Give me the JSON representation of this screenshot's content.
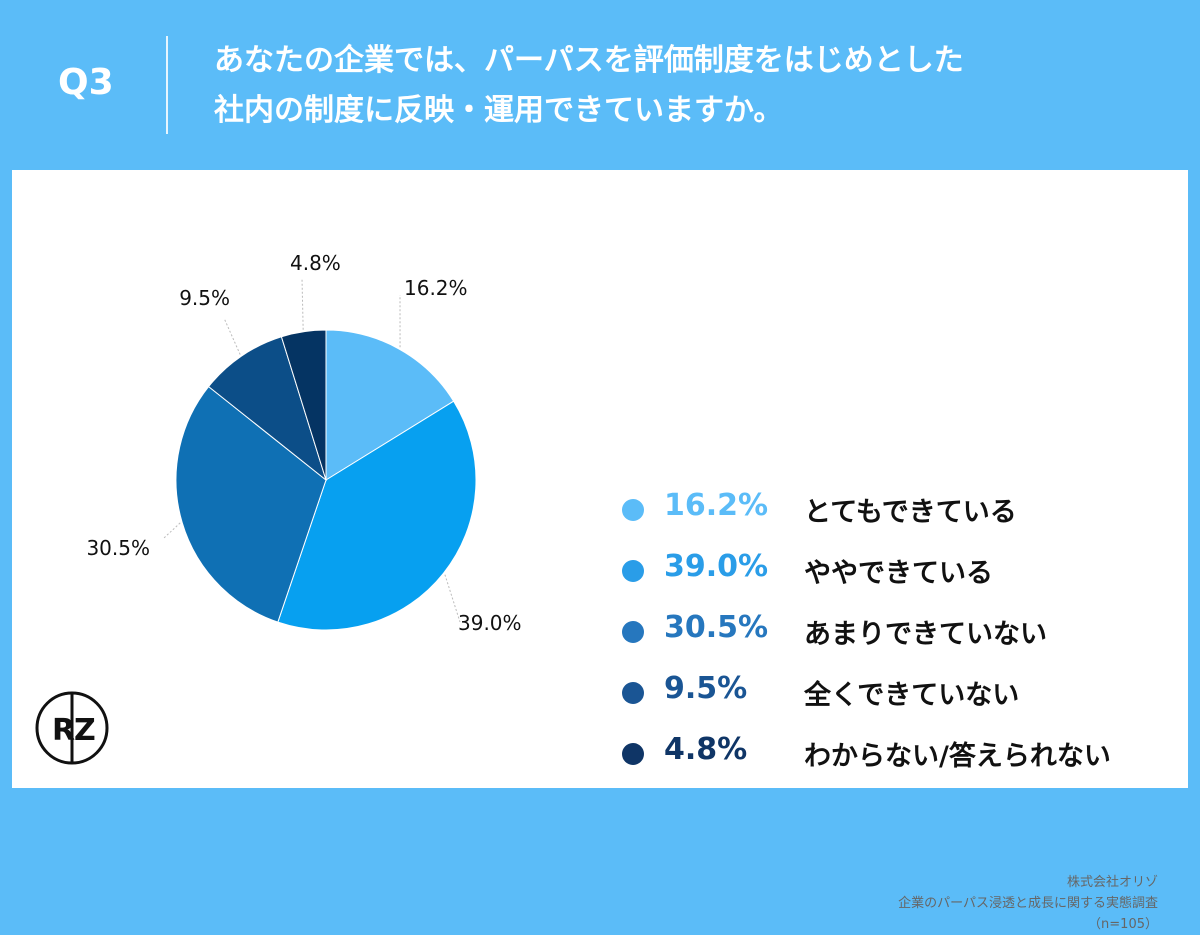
{
  "header": {
    "question": "Q3",
    "title_line1": "あなたの企業では、パーパスを評価制度をはじめとした",
    "title_line2": "社内の制度に反映・運用できていますか。"
  },
  "chart_data": {
    "type": "pie",
    "slices": [
      {
        "label": "とてもできている",
        "value": 16.2,
        "display": "16.2%",
        "color": "#5bbcf8"
      },
      {
        "label": "ややできている",
        "value": 39.0,
        "display": "39.0%",
        "color": "#07a0f0"
      },
      {
        "label": "あまりできていない",
        "value": 30.5,
        "display": "30.5%",
        "color": "#0f70b4"
      },
      {
        "label": "全くできていない",
        "value": 9.5,
        "display": "9.5%",
        "color": "#0c4e88"
      },
      {
        "label": "わからない/答えられない",
        "value": 4.8,
        "display": "4.8%",
        "color": "#053463"
      }
    ]
  },
  "legend_colors": {
    "pct": [
      "#5bbcf8",
      "#2a9de8",
      "#2677be",
      "#1a5594",
      "#0f3566"
    ]
  },
  "footer": {
    "company": "株式会社オリゾ",
    "survey": "企業のパーパス浸透と成長に関する実態調査",
    "sample": "（n=105）"
  },
  "logo": {
    "text": "RZ",
    "icon": "orizo-logo-icon"
  }
}
